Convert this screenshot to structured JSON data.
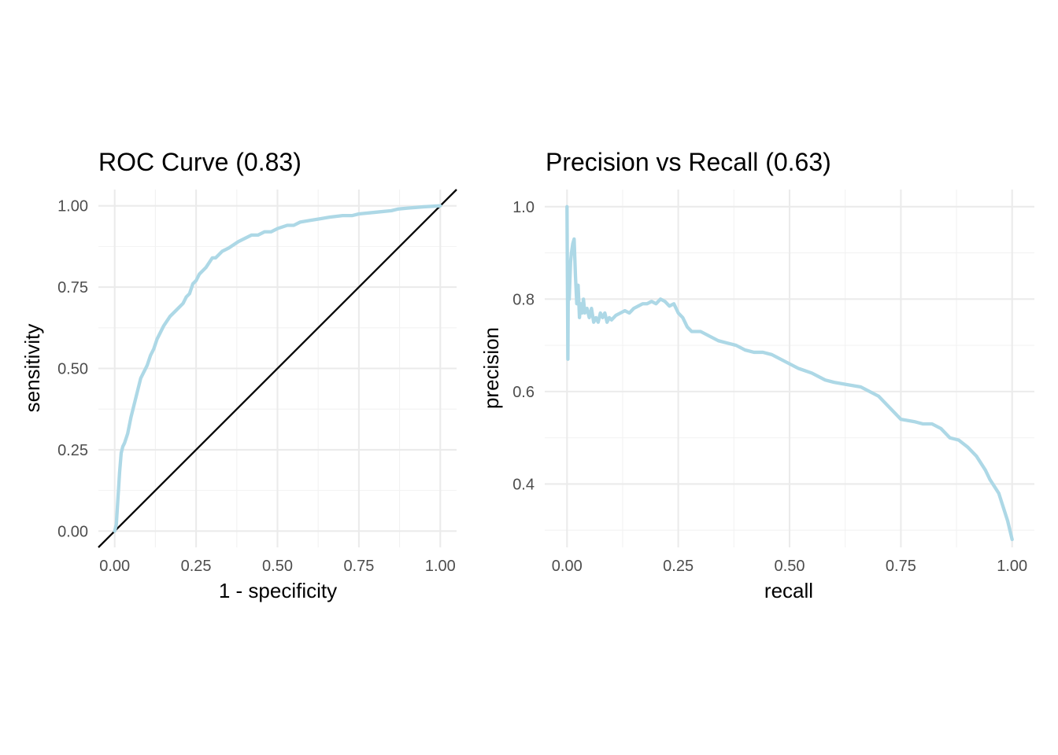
{
  "colors": {
    "curve": "#ADD8E6",
    "diagonal": "#000000"
  },
  "chart_data": [
    {
      "type": "line",
      "title": "ROC Curve (0.83)",
      "xlabel": "1 - specificity",
      "ylabel": "sensitivity",
      "xlim": [
        -0.05,
        1.05
      ],
      "ylim": [
        -0.05,
        1.05
      ],
      "xticks": [
        "0.00",
        "0.25",
        "0.50",
        "0.75",
        "1.00"
      ],
      "yticks": [
        "0.00",
        "0.25",
        "0.50",
        "0.75",
        "1.00"
      ],
      "grid": true,
      "reference_line": {
        "from": [
          -0.05,
          -0.05
        ],
        "to": [
          1.05,
          1.05
        ]
      },
      "series": [
        {
          "name": "roc",
          "x": [
            0,
            0.005,
            0.01,
            0.015,
            0.02,
            0.025,
            0.03,
            0.04,
            0.05,
            0.06,
            0.07,
            0.08,
            0.09,
            0.1,
            0.11,
            0.12,
            0.13,
            0.14,
            0.15,
            0.17,
            0.19,
            0.21,
            0.22,
            0.23,
            0.24,
            0.25,
            0.26,
            0.28,
            0.3,
            0.31,
            0.33,
            0.35,
            0.38,
            0.4,
            0.42,
            0.44,
            0.46,
            0.48,
            0.5,
            0.53,
            0.55,
            0.57,
            0.6,
            0.63,
            0.66,
            0.7,
            0.73,
            0.75,
            0.8,
            0.85,
            0.87,
            0.9,
            0.95,
            1.0
          ],
          "y": [
            0,
            0.02,
            0.1,
            0.18,
            0.24,
            0.26,
            0.27,
            0.3,
            0.35,
            0.39,
            0.43,
            0.47,
            0.49,
            0.51,
            0.54,
            0.56,
            0.59,
            0.61,
            0.63,
            0.66,
            0.68,
            0.7,
            0.72,
            0.73,
            0.76,
            0.77,
            0.79,
            0.81,
            0.84,
            0.84,
            0.86,
            0.87,
            0.89,
            0.9,
            0.91,
            0.91,
            0.92,
            0.92,
            0.93,
            0.94,
            0.94,
            0.95,
            0.955,
            0.96,
            0.965,
            0.97,
            0.97,
            0.975,
            0.98,
            0.985,
            0.99,
            0.993,
            0.997,
            1.0
          ]
        }
      ]
    },
    {
      "type": "line",
      "title": "Precision vs Recall (0.63)",
      "xlabel": "recall",
      "ylabel": "precision",
      "xlim": [
        -0.05,
        1.05
      ],
      "ylim": [
        0.2629,
        1.0371
      ],
      "xticks": [
        "0.00",
        "0.25",
        "0.50",
        "0.75",
        "1.00"
      ],
      "yticks": [
        "0.4",
        "0.6",
        "0.8",
        "1.0"
      ],
      "ytick_values": [
        0.4,
        0.6,
        0.8,
        1.0
      ],
      "grid": true,
      "series": [
        {
          "name": "precision-recall",
          "x": [
            0,
            0.002,
            0.003,
            0.005,
            0.008,
            0.01,
            0.013,
            0.016,
            0.019,
            0.022,
            0.025,
            0.028,
            0.031,
            0.034,
            0.037,
            0.04,
            0.045,
            0.05,
            0.055,
            0.06,
            0.065,
            0.07,
            0.075,
            0.08,
            0.085,
            0.09,
            0.095,
            0.1,
            0.11,
            0.12,
            0.13,
            0.14,
            0.15,
            0.16,
            0.17,
            0.18,
            0.19,
            0.2,
            0.21,
            0.22,
            0.23,
            0.24,
            0.25,
            0.26,
            0.27,
            0.28,
            0.3,
            0.32,
            0.34,
            0.36,
            0.38,
            0.4,
            0.42,
            0.44,
            0.46,
            0.48,
            0.5,
            0.52,
            0.55,
            0.58,
            0.6,
            0.63,
            0.66,
            0.68,
            0.7,
            0.72,
            0.75,
            0.78,
            0.8,
            0.82,
            0.84,
            0.86,
            0.88,
            0.9,
            0.92,
            0.94,
            0.95,
            0.97,
            0.98,
            0.99,
            1.0
          ],
          "y": [
            1.0,
            0.67,
            0.85,
            0.8,
            0.88,
            0.9,
            0.92,
            0.93,
            0.85,
            0.79,
            0.83,
            0.76,
            0.79,
            0.77,
            0.8,
            0.77,
            0.78,
            0.76,
            0.78,
            0.75,
            0.76,
            0.75,
            0.77,
            0.76,
            0.77,
            0.75,
            0.76,
            0.755,
            0.765,
            0.77,
            0.775,
            0.77,
            0.78,
            0.785,
            0.79,
            0.79,
            0.795,
            0.79,
            0.8,
            0.795,
            0.785,
            0.79,
            0.77,
            0.76,
            0.74,
            0.73,
            0.73,
            0.72,
            0.71,
            0.705,
            0.7,
            0.69,
            0.685,
            0.685,
            0.68,
            0.67,
            0.66,
            0.65,
            0.64,
            0.625,
            0.62,
            0.615,
            0.61,
            0.6,
            0.59,
            0.57,
            0.54,
            0.535,
            0.53,
            0.53,
            0.52,
            0.5,
            0.495,
            0.48,
            0.46,
            0.43,
            0.41,
            0.38,
            0.35,
            0.32,
            0.28
          ]
        }
      ]
    }
  ]
}
